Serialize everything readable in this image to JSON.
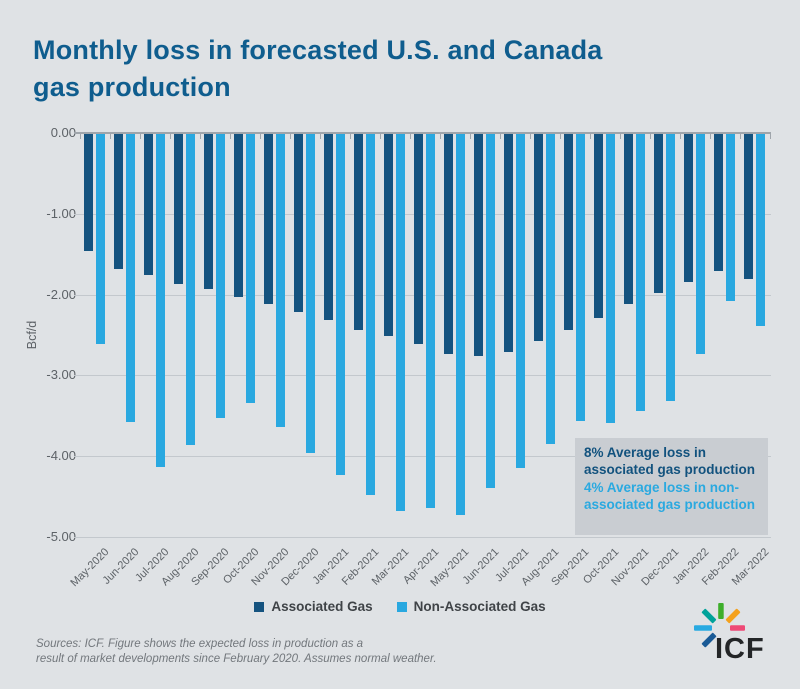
{
  "title": {
    "lines": [
      "Monthly loss in forecasted U.S. and Canada",
      "gas production"
    ]
  },
  "chart_data": {
    "type": "bar",
    "title": "Monthly loss in forecasted U.S. and Canada gas production",
    "xlabel": "",
    "ylabel": "Bcf/d",
    "ylim": [
      -5.0,
      0.0
    ],
    "yticks": [
      "0.00",
      "-1.00",
      "-2.00",
      "-3.00",
      "-4.00",
      "-5.00"
    ],
    "grid": true,
    "legend_position": "bottom",
    "categories": [
      "May-2020",
      "Jun-2020",
      "Jul-2020",
      "Aug-2020",
      "Sep-2020",
      "Oct-2020",
      "Nov-2020",
      "Dec-2020",
      "Jan-2021",
      "Feb-2021",
      "Mar-2021",
      "Apr-2021",
      "May-2021",
      "Jun-2021",
      "Jul-2021",
      "Aug-2021",
      "Sep-2021",
      "Oct-2021",
      "Nov-2021",
      "Dec-2021",
      "Jan-2022",
      "Feb-2022",
      "Mar-2022"
    ],
    "series": [
      {
        "name": "Associated Gas",
        "color": "#15537f",
        "values": [
          -1.45,
          -1.67,
          -1.75,
          -1.85,
          -1.92,
          -2.02,
          -2.1,
          -2.2,
          -2.3,
          -2.42,
          -2.5,
          -2.6,
          -2.72,
          -2.75,
          -2.7,
          -2.56,
          -2.42,
          -2.28,
          -2.1,
          -1.97,
          -1.83,
          -1.7,
          -1.8
        ]
      },
      {
        "name": "Non-Associated Gas",
        "color": "#29a8e0",
        "values": [
          -2.6,
          -3.56,
          -4.12,
          -3.85,
          -3.52,
          -3.33,
          -3.62,
          -3.95,
          -4.22,
          -4.47,
          -4.67,
          -4.63,
          -4.72,
          -4.38,
          -4.13,
          -3.83,
          -3.55,
          -3.58,
          -3.43,
          -3.3,
          -2.72,
          -2.07,
          -2.38
        ]
      }
    ]
  },
  "annotation": {
    "associated_note": "8% Average loss in associated gas production",
    "non_associated_note": "4% Average loss in non-associated gas production"
  },
  "footer": {
    "lines": [
      "Sources: ICF. Figure shows the expected loss in production as a",
      "result of market developments since February 2020.  Assumes normal weather."
    ]
  },
  "logo": {
    "text": "ICF"
  },
  "colors": {
    "background": "#dfe2e5",
    "title_text": "#0f5d8e",
    "associated_bar": "#15537f",
    "non_associated_bar": "#29a8e0",
    "annotation_box": "#c9cdd2",
    "annotation_associated_text": "#12527e",
    "annotation_non_associated_text": "#2aa9e0",
    "gridline": "#c3c8cd",
    "axis_text": "#5d6267",
    "footer_text": "#72777c"
  }
}
